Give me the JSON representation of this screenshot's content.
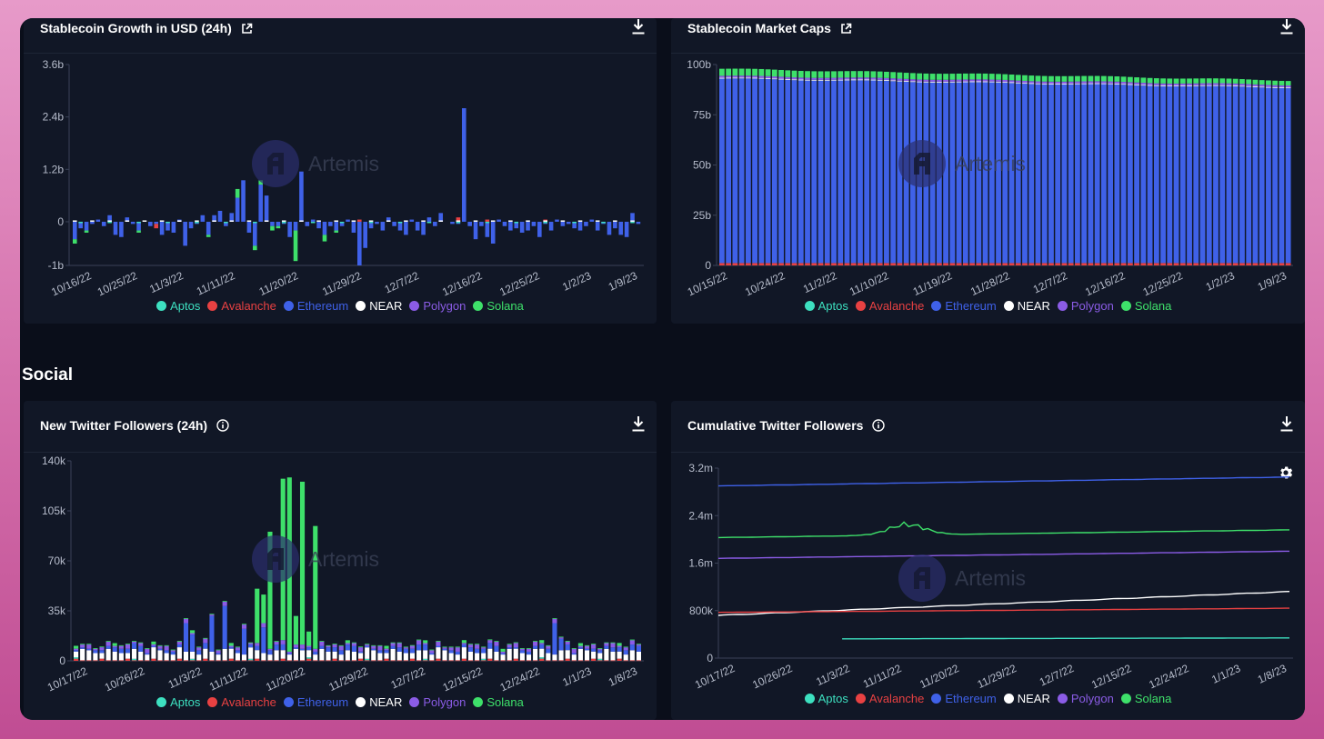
{
  "colors": {
    "aptos": "#3de0c0",
    "avalanche": "#e84142",
    "ethereum": "#3f61e8",
    "near": "#ffffff",
    "polygon": "#8b5ce6",
    "solana": "#3ee06a"
  },
  "watermark": "Artemis",
  "section_social": "Social",
  "legend": [
    {
      "key": "aptos",
      "label": "Aptos"
    },
    {
      "key": "avalanche",
      "label": "Avalanche"
    },
    {
      "key": "ethereum",
      "label": "Ethereum"
    },
    {
      "key": "near",
      "label": "NEAR"
    },
    {
      "key": "polygon",
      "label": "Polygon"
    },
    {
      "key": "solana",
      "label": "Solana"
    }
  ],
  "panels": {
    "growth": {
      "title": "Stablecoin Growth in USD (24h)"
    },
    "caps": {
      "title": "Stablecoin Market Caps"
    },
    "new_followers": {
      "title": "New Twitter Followers (24h)"
    },
    "cumulative": {
      "title": "Cumulative Twitter Followers"
    }
  },
  "chart_data": [
    {
      "id": "growth",
      "type": "bar",
      "stacked": true,
      "title": "Stablecoin Growth in USD (24h)",
      "ylim": [
        -1000000000,
        3600000000
      ],
      "y_ticks": [
        {
          "v": 3600000000,
          "label": "3.6b"
        },
        {
          "v": 2400000000,
          "label": "2.4b"
        },
        {
          "v": 1200000000,
          "label": "1.2b"
        },
        {
          "v": 0,
          "label": "0"
        },
        {
          "v": -1000000000,
          "label": "-1b"
        }
      ],
      "x_ticks": [
        "10/16/22",
        "10/25/22",
        "11/3/22",
        "11/11/22",
        "11/20/22",
        "11/29/22",
        "12/7/22",
        "12/16/22",
        "12/25/22",
        "1/2/23",
        "1/9/23"
      ],
      "x_tick_positions": [
        0.04,
        0.12,
        0.2,
        0.29,
        0.4,
        0.51,
        0.61,
        0.72,
        0.82,
        0.91,
        0.99
      ],
      "unit": "USD",
      "ethereum_daily_b": [
        -0.4,
        -0.15,
        -0.2,
        -0.05,
        0.05,
        -0.1,
        0.15,
        -0.3,
        -0.35,
        0.1,
        -0.05,
        -0.2,
        0.0,
        -0.1,
        -0.05,
        -0.3,
        -0.2,
        -0.25,
        0.05,
        -0.55,
        -0.15,
        -0.05,
        0.15,
        -0.3,
        0.15,
        0.25,
        -0.1,
        0.2,
        0.55,
        0.95,
        -0.25,
        -0.55,
        0.85,
        0.6,
        -0.1,
        -0.1,
        -0.05,
        -0.35,
        -0.2,
        1.15,
        -0.1,
        0.05,
        -0.15,
        -0.3,
        -0.1,
        -0.2,
        -0.1,
        0.05,
        -0.25,
        -1.0,
        -0.6,
        -0.15,
        -0.05,
        -0.2,
        0.1,
        -0.1,
        -0.2,
        -0.3,
        0.05,
        -0.2,
        -0.3,
        0.1,
        -0.1,
        0.2,
        0.0,
        -0.05,
        -0.05,
        2.6,
        -0.1,
        -0.4,
        -0.1,
        -0.35,
        -0.5,
        0.05,
        -0.1,
        -0.2,
        -0.15,
        -0.25,
        -0.2,
        -0.1,
        -0.35,
        -0.05,
        -0.2,
        0.05,
        -0.1,
        -0.05,
        -0.15,
        -0.2,
        -0.1,
        0.05,
        -0.2,
        -0.05,
        -0.3,
        -0.15,
        -0.3,
        -0.35,
        0.2,
        -0.05
      ],
      "solana_daily_b": [
        -0.1,
        0.0,
        -0.05,
        0,
        0,
        0,
        0,
        0,
        0,
        0,
        0,
        -0.05,
        0,
        0,
        0,
        0,
        0,
        0,
        0,
        0,
        0,
        0,
        0,
        -0.05,
        0,
        0,
        0,
        0,
        0.2,
        0,
        0,
        -0.1,
        0.1,
        0,
        -0.1,
        -0.05,
        0,
        0,
        -0.7,
        0,
        0,
        0,
        0,
        -0.15,
        0,
        -0.05,
        0,
        0,
        0,
        0,
        0,
        0,
        0,
        0,
        0,
        0,
        0,
        0,
        0,
        0,
        0,
        0,
        0,
        0,
        0,
        0,
        0,
        0,
        0,
        0,
        0,
        0,
        0,
        0,
        0,
        0,
        0,
        0,
        0,
        0,
        0,
        0,
        0,
        0,
        0,
        0,
        0,
        0,
        0,
        0,
        0,
        0,
        0,
        0,
        0,
        0,
        0,
        0
      ],
      "avalanche_daily_b": [
        0,
        0,
        0,
        0,
        0,
        0,
        0,
        0,
        0,
        0,
        0,
        0,
        0,
        0,
        -0.1,
        0,
        0,
        0,
        0,
        0,
        0,
        0,
        0,
        0,
        0,
        0,
        0,
        0,
        0,
        0,
        0,
        0,
        0,
        0,
        0,
        0,
        0,
        0,
        0,
        0,
        0,
        0,
        0,
        0,
        0,
        0,
        0,
        0,
        0,
        0.05,
        0,
        0,
        0,
        0,
        0,
        0,
        0,
        0,
        0,
        0,
        0,
        0,
        0,
        0,
        0,
        0,
        0.1,
        0,
        0,
        0,
        0,
        0.05,
        0,
        0,
        0,
        0,
        0,
        0,
        0,
        0,
        0,
        0.05,
        0,
        0,
        0,
        0,
        0,
        0,
        0,
        0,
        0,
        0,
        0,
        0,
        0,
        0,
        0
      ]
    },
    {
      "id": "caps",
      "type": "bar",
      "stacked": true,
      "title": "Stablecoin Market Caps",
      "ylim": [
        0,
        100000000000
      ],
      "y_ticks": [
        {
          "v": 100000000000,
          "label": "100b"
        },
        {
          "v": 75000000000,
          "label": "75b"
        },
        {
          "v": 50000000000,
          "label": "50b"
        },
        {
          "v": 25000000000,
          "label": "25b"
        },
        {
          "v": 0,
          "label": "0"
        }
      ],
      "x_ticks": [
        "10/15/22",
        "10/24/22",
        "11/2/22",
        "11/10/22",
        "11/19/22",
        "11/28/22",
        "12/7/22",
        "12/16/22",
        "12/25/22",
        "1/2/23",
        "1/9/23"
      ],
      "x_tick_positions": [
        0.02,
        0.12,
        0.21,
        0.3,
        0.41,
        0.51,
        0.61,
        0.71,
        0.81,
        0.9,
        0.99
      ],
      "num_days": 87,
      "ethereum_start_b": 93,
      "ethereum_end_b": 88.5,
      "polygon_b": 1.0,
      "near_b": 0.4,
      "solana_start_b": 3.5,
      "solana_end_b": 2.2,
      "avalanche_b": 1.2
    },
    {
      "id": "new_followers",
      "type": "bar",
      "stacked": true,
      "title": "New Twitter Followers (24h)",
      "ylim": [
        0,
        140000
      ],
      "y_ticks": [
        {
          "v": 140000,
          "label": "140k"
        },
        {
          "v": 105000,
          "label": "105k"
        },
        {
          "v": 70000,
          "label": "70k"
        },
        {
          "v": 35000,
          "label": "35k"
        },
        {
          "v": 0,
          "label": "0"
        }
      ],
      "x_ticks": [
        "10/17/22",
        "10/26/22",
        "11/3/22",
        "11/11/22",
        "11/20/22",
        "11/29/22",
        "12/7/22",
        "12/15/22",
        "12/24/22",
        "1/1/23",
        "1/8/23"
      ],
      "x_tick_positions": [
        0.03,
        0.13,
        0.23,
        0.31,
        0.41,
        0.52,
        0.62,
        0.72,
        0.82,
        0.91,
        0.99
      ],
      "solana_spikes_k": {
        "30": 82,
        "32": 113,
        "33": 122,
        "35": 114,
        "37": 86,
        "28": 38,
        "29": 20,
        "34": 20,
        "36": 10
      },
      "ethereum_spikes_k": {
        "17": 20,
        "18": 12,
        "21": 25,
        "23": 30,
        "26": 18,
        "29": 18,
        "74": 22,
        "75": 8
      }
    },
    {
      "id": "cumulative",
      "type": "line",
      "title": "Cumulative Twitter Followers",
      "ylim": [
        0,
        3200000
      ],
      "y_ticks": [
        {
          "v": 3200000,
          "label": "3.2m"
        },
        {
          "v": 2400000,
          "label": "2.4m"
        },
        {
          "v": 1600000,
          "label": "1.6m"
        },
        {
          "v": 800000,
          "label": "800k"
        },
        {
          "v": 0,
          "label": "0"
        }
      ],
      "x_ticks": [
        "10/17/22",
        "10/26/22",
        "11/3/22",
        "11/11/22",
        "11/20/22",
        "11/29/22",
        "12/7/22",
        "12/15/22",
        "12/24/22",
        "1/1/23",
        "1/8/23"
      ],
      "x_tick_positions": [
        0.03,
        0.13,
        0.23,
        0.32,
        0.42,
        0.52,
        0.62,
        0.72,
        0.82,
        0.91,
        0.99
      ],
      "series": [
        {
          "key": "ethereum",
          "start": 2900000,
          "end": 3050000
        },
        {
          "key": "solana",
          "start": 2030000,
          "end": 2160000,
          "bump_peak": 2380000
        },
        {
          "key": "polygon",
          "start": 1680000,
          "end": 1800000
        },
        {
          "key": "near",
          "start": 720000,
          "end": 1120000
        },
        {
          "key": "avalanche",
          "start": 770000,
          "end": 840000
        },
        {
          "key": "aptos",
          "start": 320000,
          "end": 340000,
          "start_fraction": 0.21
        }
      ]
    }
  ]
}
